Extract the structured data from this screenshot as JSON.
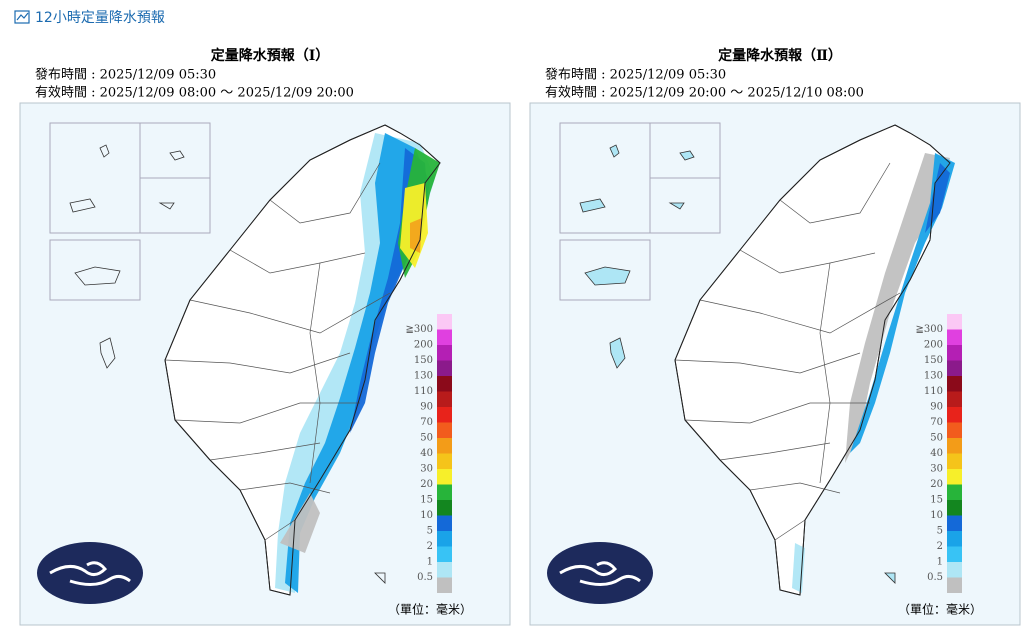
{
  "header": {
    "title": "12小時定量降水預報"
  },
  "panels": [
    {
      "title": "定量降水預報（Ⅰ）",
      "issued": "發布時間 : 2025/12/09 05:30",
      "valid": "有效時間 : 2025/12/09 08:00 ～ 2025/12/09 20:00",
      "legend_labels": [
        "≧300",
        "200",
        "150",
        "130",
        "110",
        "90",
        "70",
        "50",
        "40",
        "30",
        "20",
        "15",
        "10",
        "5",
        "2",
        "1",
        "0.5"
      ],
      "unit": "（單位：毫米）"
    },
    {
      "title": "定量降水預報（Ⅱ）",
      "issued": "發布時間 : 2025/12/09 05:30",
      "valid": "有效時間 : 2025/12/09 20:00 ～ 2025/12/10 08:00",
      "legend_labels": [
        "≧300",
        "200",
        "150",
        "130",
        "110",
        "90",
        "70",
        "50",
        "40",
        "30",
        "20",
        "15",
        "10",
        "5",
        "2",
        "1",
        "0.5"
      ],
      "unit": "（單位：毫米）"
    }
  ]
}
